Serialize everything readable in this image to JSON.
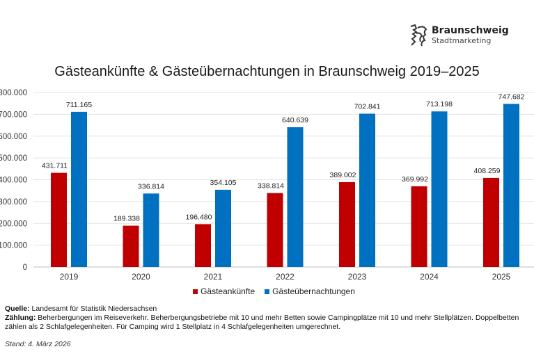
{
  "logo": {
    "name": "Braunschweig",
    "sub": "Stadtmarketing"
  },
  "chart_data": {
    "type": "bar",
    "title": "Gästeankünfte & Gästeübernachtungen in Braunschweig 2019–2025",
    "categories": [
      "2019",
      "2020",
      "2021",
      "2022",
      "2023",
      "2024",
      "2025"
    ],
    "series": [
      {
        "name": "Gästeankünfte",
        "color": "#C00000",
        "values": [
          431711,
          189338,
          196480,
          338814,
          389002,
          369992,
          408259
        ],
        "labels": [
          "431.711",
          "189.338",
          "196.480",
          "338.814",
          "389.002",
          "369.992",
          "408.259"
        ]
      },
      {
        "name": "Gästeübernachtungen",
        "color": "#0070C0",
        "values": [
          711165,
          336814,
          354105,
          640639,
          702841,
          713198,
          747682
        ],
        "labels": [
          "711.165",
          "336.814",
          "354.105",
          "640.639",
          "702.841",
          "713.198",
          "747.682"
        ]
      }
    ],
    "ylim": [
      0,
      800000
    ],
    "yticks": [
      "0",
      "100.000",
      "200.000",
      "300.000",
      "400.000",
      "500.000",
      "600.000",
      "700.000",
      "800.000"
    ],
    "grid": true,
    "legend": "bottom"
  },
  "notes": {
    "source_label": "Quelle:",
    "source": " Landesamt für Statistik Niedersachsen",
    "count_label": "Zählung:",
    "count": " Beherbergungen im Reiseverkehr. Beherbergungsbetriebe mit 10 und mehr Betten sowie Campingplätze mit 10 und mehr Stellplätzen. Doppelbetten zählen als 2 Schlafgelegenheiten. Für Camping wird 1 Stellplatz in 4 Schlafgelegenheiten umgerechnet.",
    "stand": "Stand: 4. März 2026"
  }
}
